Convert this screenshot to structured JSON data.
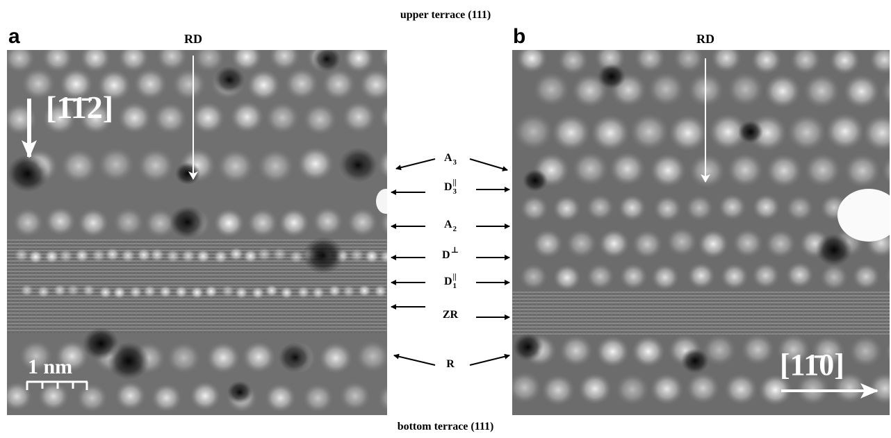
{
  "figure": {
    "top_label": "upper terrace (111)",
    "bottom_label": "bottom terrace (111)",
    "panels": [
      {
        "letter": "a",
        "rd_label": "RD",
        "direction": "[1̄1̄2]",
        "scale_bar": "1 nm"
      },
      {
        "letter": "b",
        "rd_label": "RD",
        "direction": "[11̄0]"
      }
    ],
    "row_labels": [
      {
        "base": "A",
        "sub": "3"
      },
      {
        "base": "D",
        "sup": "||",
        "sub": "3"
      },
      {
        "base": "A",
        "sub": "2"
      },
      {
        "base": "D",
        "sup": "⊥"
      },
      {
        "base": "D",
        "sup": "||",
        "sub": "1"
      },
      {
        "base": "ZR"
      },
      {
        "base": "R"
      }
    ]
  }
}
